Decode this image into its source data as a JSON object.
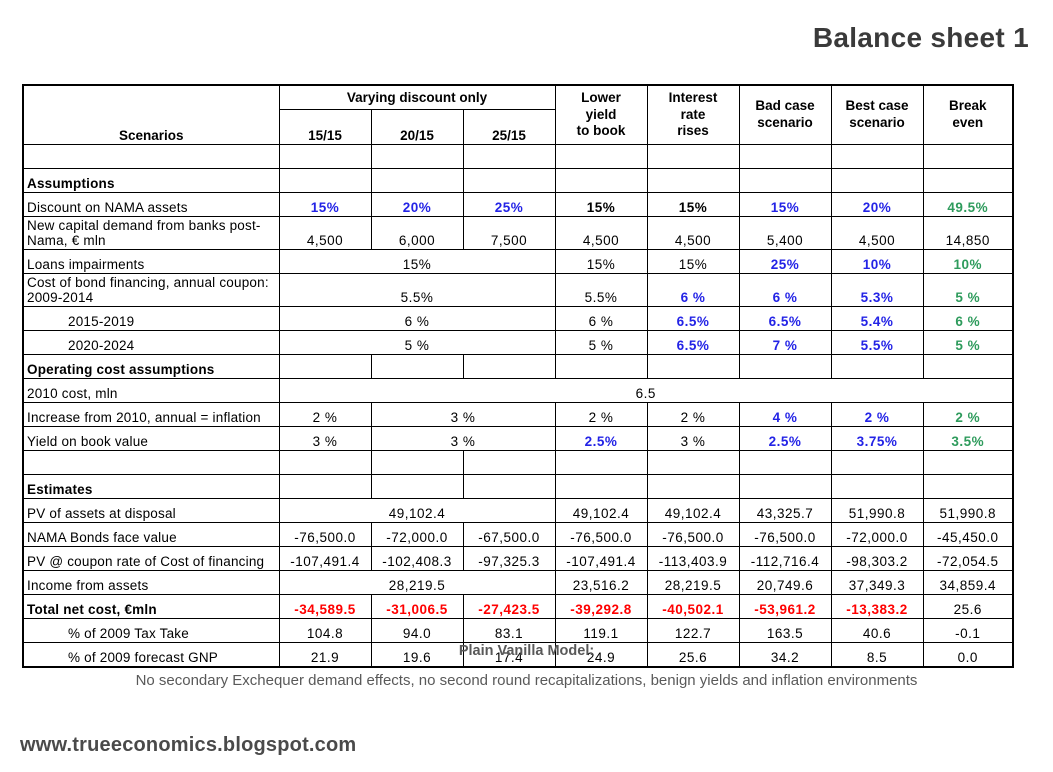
{
  "title": "Balance sheet 1",
  "colors": {
    "blue": "#2323e6",
    "green": "#2e9b5c",
    "red": "#ff0000",
    "black": "#000000"
  },
  "footer": {
    "model_title": "Plain Vanilla Model:",
    "model_note": "No secondary Exchequer demand effects, no second round recapitalizations, benign yields and inflation environments",
    "website": "www.trueeconomics.blogspot.com"
  },
  "chart_data": {
    "type": "table",
    "corner_header": "Scenarios",
    "group_header": {
      "label": "Varying discount only",
      "span": 3
    },
    "sub_headers": [
      "15/15",
      "20/15",
      "25/15"
    ],
    "merged_headers": [
      "Lower\nyield\nto book",
      "Interest\nrate\nrises",
      "Bad case\nscenario",
      "Best case\nscenario",
      "Break\neven"
    ],
    "rows": [
      {
        "label": "",
        "cells": [
          {
            "t": ""
          },
          {
            "t": ""
          },
          {
            "t": ""
          },
          {
            "t": ""
          },
          {
            "t": ""
          },
          {
            "t": ""
          },
          {
            "t": ""
          },
          {
            "t": ""
          }
        ]
      },
      {
        "label": "Assumptions",
        "bold": true,
        "cells": [
          {
            "t": ""
          },
          {
            "t": ""
          },
          {
            "t": ""
          },
          {
            "t": ""
          },
          {
            "t": ""
          },
          {
            "t": ""
          },
          {
            "t": ""
          },
          {
            "t": ""
          }
        ]
      },
      {
        "label": "Discount on NAMA assets",
        "cells": [
          {
            "t": "15%",
            "c": "blue",
            "b": true
          },
          {
            "t": "20%",
            "c": "blue",
            "b": true
          },
          {
            "t": "25%",
            "c": "blue",
            "b": true
          },
          {
            "t": "15%",
            "b": true
          },
          {
            "t": "15%",
            "b": true
          },
          {
            "t": "15%",
            "c": "blue",
            "b": true
          },
          {
            "t": "20%",
            "c": "blue",
            "b": true
          },
          {
            "t": "49.5%",
            "c": "green",
            "b": true
          }
        ]
      },
      {
        "label": "New capital demand from banks post-Nama, € mln",
        "cells": [
          {
            "t": "4,500"
          },
          {
            "t": "6,000"
          },
          {
            "t": "7,500"
          },
          {
            "t": "4,500"
          },
          {
            "t": "4,500"
          },
          {
            "t": "5,400"
          },
          {
            "t": "4,500"
          },
          {
            "t": "14,850"
          }
        ]
      },
      {
        "label": "Loans impairments",
        "cells": [
          {
            "t": "15%",
            "s": 3
          },
          {
            "t": "15%"
          },
          {
            "t": "15%"
          },
          {
            "t": "25%",
            "c": "blue",
            "b": true
          },
          {
            "t": "10%",
            "c": "blue",
            "b": true
          },
          {
            "t": "10%",
            "c": "green",
            "b": true
          }
        ]
      },
      {
        "label": "Cost of bond financing, annual coupon: 2009-2014",
        "cells": [
          {
            "t": "5.5%",
            "s": 3
          },
          {
            "t": "5.5%"
          },
          {
            "t": "6 %",
            "c": "blue",
            "b": true
          },
          {
            "t": "6 %",
            "c": "blue",
            "b": true
          },
          {
            "t": "5.3%",
            "c": "blue",
            "b": true
          },
          {
            "t": "5 %",
            "c": "green",
            "b": true
          }
        ]
      },
      {
        "label": "2015-2019",
        "indent": true,
        "cells": [
          {
            "t": "6 %",
            "s": 3
          },
          {
            "t": "6 %"
          },
          {
            "t": "6.5%",
            "c": "blue",
            "b": true
          },
          {
            "t": "6.5%",
            "c": "blue",
            "b": true
          },
          {
            "t": "5.4%",
            "c": "blue",
            "b": true
          },
          {
            "t": "6 %",
            "c": "green",
            "b": true
          }
        ]
      },
      {
        "label": "2020-2024",
        "indent": true,
        "cells": [
          {
            "t": "5 %",
            "s": 3
          },
          {
            "t": "5 %"
          },
          {
            "t": "6.5%",
            "c": "blue",
            "b": true
          },
          {
            "t": "7 %",
            "c": "blue",
            "b": true
          },
          {
            "t": "5.5%",
            "c": "blue",
            "b": true
          },
          {
            "t": "5 %",
            "c": "green",
            "b": true
          }
        ]
      },
      {
        "label": "Operating cost assumptions",
        "bold": true,
        "cells": [
          {
            "t": ""
          },
          {
            "t": ""
          },
          {
            "t": ""
          },
          {
            "t": ""
          },
          {
            "t": ""
          },
          {
            "t": ""
          },
          {
            "t": ""
          },
          {
            "t": ""
          }
        ]
      },
      {
        "label": "2010 cost, mln",
        "cells": [
          {
            "t": "6.5",
            "s": 8
          }
        ]
      },
      {
        "label": "Increase from 2010, annual = inflation",
        "cells": [
          {
            "t": "2 %"
          },
          {
            "t": "3 %",
            "s": 2
          },
          {
            "t": "2 %"
          },
          {
            "t": "2 %"
          },
          {
            "t": "4 %",
            "c": "blue",
            "b": true
          },
          {
            "t": "2 %",
            "c": "blue",
            "b": true
          },
          {
            "t": "2 %",
            "c": "green",
            "b": true
          }
        ]
      },
      {
        "label": "Yield on book value",
        "cells": [
          {
            "t": "3 %"
          },
          {
            "t": "3 %",
            "s": 2
          },
          {
            "t": "2.5%",
            "c": "blue",
            "b": true
          },
          {
            "t": "3 %"
          },
          {
            "t": "2.5%",
            "c": "blue",
            "b": true
          },
          {
            "t": "3.75%",
            "c": "blue",
            "b": true
          },
          {
            "t": "3.5%",
            "c": "green",
            "b": true
          }
        ]
      },
      {
        "label": "",
        "cells": [
          {
            "t": ""
          },
          {
            "t": ""
          },
          {
            "t": ""
          },
          {
            "t": ""
          },
          {
            "t": ""
          },
          {
            "t": ""
          },
          {
            "t": ""
          },
          {
            "t": ""
          }
        ]
      },
      {
        "label": "Estimates",
        "bold": true,
        "cells": [
          {
            "t": ""
          },
          {
            "t": ""
          },
          {
            "t": ""
          },
          {
            "t": ""
          },
          {
            "t": ""
          },
          {
            "t": ""
          },
          {
            "t": ""
          },
          {
            "t": ""
          }
        ]
      },
      {
        "label": "PV of assets at disposal",
        "cells": [
          {
            "t": "49,102.4",
            "s": 3
          },
          {
            "t": "49,102.4"
          },
          {
            "t": "49,102.4"
          },
          {
            "t": "43,325.7"
          },
          {
            "t": "51,990.8"
          },
          {
            "t": "51,990.8"
          }
        ]
      },
      {
        "label": "NAMA Bonds face value",
        "cells": [
          {
            "t": "-76,500.0"
          },
          {
            "t": "-72,000.0"
          },
          {
            "t": "-67,500.0"
          },
          {
            "t": "-76,500.0"
          },
          {
            "t": "-76,500.0"
          },
          {
            "t": "-76,500.0"
          },
          {
            "t": "-72,000.0"
          },
          {
            "t": "-45,450.0"
          }
        ]
      },
      {
        "label": "PV @ coupon rate of Cost of financing",
        "cells": [
          {
            "t": "-107,491.4"
          },
          {
            "t": "-102,408.3"
          },
          {
            "t": "-97,325.3"
          },
          {
            "t": "-107,491.4"
          },
          {
            "t": "-113,403.9"
          },
          {
            "t": "-112,716.4"
          },
          {
            "t": "-98,303.2"
          },
          {
            "t": "-72,054.5"
          }
        ]
      },
      {
        "label": "Income from assets",
        "cells": [
          {
            "t": "28,219.5",
            "s": 3
          },
          {
            "t": "23,516.2"
          },
          {
            "t": "28,219.5"
          },
          {
            "t": "20,749.6"
          },
          {
            "t": "37,349.3"
          },
          {
            "t": "34,859.4"
          }
        ]
      },
      {
        "label": "Total net cost, €mln",
        "bold": true,
        "cells": [
          {
            "t": "-34,589.5",
            "c": "red",
            "b": true
          },
          {
            "t": "-31,006.5",
            "c": "red",
            "b": true
          },
          {
            "t": "-27,423.5",
            "c": "red",
            "b": true
          },
          {
            "t": "-39,292.8",
            "c": "red",
            "b": true
          },
          {
            "t": "-40,502.1",
            "c": "red",
            "b": true
          },
          {
            "t": "-53,961.2",
            "c": "red",
            "b": true
          },
          {
            "t": "-13,383.2",
            "c": "red",
            "b": true
          },
          {
            "t": "25.6"
          }
        ]
      },
      {
        "label": "% of 2009 Tax Take",
        "indent": true,
        "cells": [
          {
            "t": "104.8"
          },
          {
            "t": "94.0"
          },
          {
            "t": "83.1"
          },
          {
            "t": "119.1"
          },
          {
            "t": "122.7"
          },
          {
            "t": "163.5"
          },
          {
            "t": "40.6"
          },
          {
            "t": "-0.1"
          }
        ]
      },
      {
        "label": "% of 2009 forecast GNP",
        "indent": true,
        "cells": [
          {
            "t": "21.9"
          },
          {
            "t": "19.6"
          },
          {
            "t": "17.4"
          },
          {
            "t": "24.9"
          },
          {
            "t": "25.6"
          },
          {
            "t": "34.2"
          },
          {
            "t": "8.5"
          },
          {
            "t": "0.0"
          }
        ]
      }
    ]
  }
}
